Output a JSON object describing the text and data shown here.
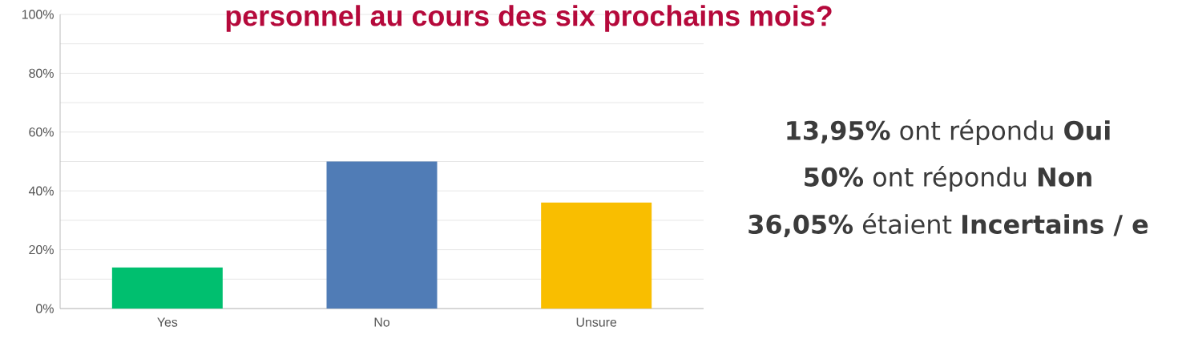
{
  "chart_data": {
    "type": "bar",
    "title": "personnel au cours des six prochains mois?",
    "categories": [
      "Yes",
      "No",
      "Unsure"
    ],
    "values": [
      13.95,
      50,
      36.05
    ],
    "colors": [
      "#00bf6f",
      "#507cb6",
      "#f9be00"
    ],
    "ylim": [
      0,
      100
    ],
    "yticks": [
      {
        "value": 0,
        "label": "0%"
      },
      {
        "value": 10,
        "label": null
      },
      {
        "value": 20,
        "label": "20%"
      },
      {
        "value": 30,
        "label": null
      },
      {
        "value": 40,
        "label": "40%"
      },
      {
        "value": 50,
        "label": null
      },
      {
        "value": 60,
        "label": "60%"
      },
      {
        "value": 70,
        "label": null
      },
      {
        "value": 80,
        "label": "80%"
      },
      {
        "value": 90,
        "label": null
      },
      {
        "value": 100,
        "label": "100%"
      }
    ],
    "grid": "y",
    "annotations": [
      "**13,95%** ont répondu **Oui**",
      "**50%** ont répondu **Non**",
      "**36,05%** étaient **Incertains / e**"
    ]
  }
}
